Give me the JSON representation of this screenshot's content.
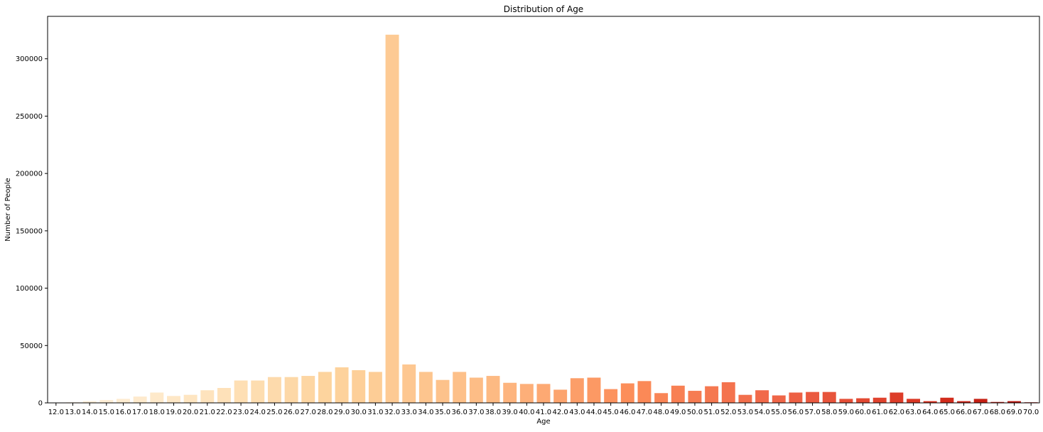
{
  "chart_data": {
    "type": "bar",
    "title": "Distribution of Age",
    "xlabel": "Age",
    "ylabel": "Number of People",
    "ylim": [
      0,
      337000
    ],
    "yticks": [
      0,
      50000,
      100000,
      150000,
      200000,
      250000,
      300000
    ],
    "grid": false,
    "legend": "none",
    "colormap": "OrRd",
    "categories": [
      "12.0",
      "13.0",
      "14.0",
      "15.0",
      "16.0",
      "17.0",
      "18.0",
      "19.0",
      "20.0",
      "21.0",
      "22.0",
      "23.0",
      "24.0",
      "25.0",
      "26.0",
      "27.0",
      "28.0",
      "29.0",
      "30.0",
      "31.0",
      "32.0",
      "33.0",
      "34.0",
      "35.0",
      "36.0",
      "37.0",
      "38.0",
      "39.0",
      "40.0",
      "41.0",
      "42.0",
      "43.0",
      "44.0",
      "45.0",
      "46.0",
      "47.0",
      "48.0",
      "49.0",
      "50.0",
      "51.0",
      "52.0",
      "53.0",
      "54.0",
      "55.0",
      "56.0",
      "57.0",
      "58.0",
      "59.0",
      "60.0",
      "61.0",
      "62.0",
      "63.0",
      "64.0",
      "65.0",
      "66.0",
      "67.0",
      "68.0",
      "69.0",
      "70.0"
    ],
    "values": [
      300,
      500,
      1500,
      2500,
      3500,
      5500,
      9000,
      6000,
      7000,
      11000,
      13000,
      19500,
      19500,
      22500,
      22500,
      23500,
      27000,
      31000,
      28500,
      27000,
      321000,
      33500,
      27000,
      20000,
      27000,
      22000,
      23500,
      17500,
      16500,
      16500,
      11500,
      21500,
      22000,
      12000,
      17000,
      19000,
      8500,
      15000,
      10500,
      14500,
      18000,
      7000,
      11000,
      6500,
      9000,
      9500,
      9500,
      3500,
      4000,
      4500,
      9000,
      3500,
      1500,
      4500,
      1500,
      3500,
      800,
      1500,
      500
    ]
  }
}
